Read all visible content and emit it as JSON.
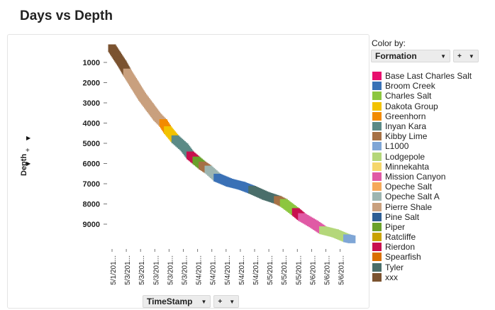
{
  "page": {
    "title": "Days vs Depth"
  },
  "y_axis_control": {
    "label": "Depth",
    "plus": "+"
  },
  "x_axis_control": {
    "label": "TimeStamp",
    "plus": "+"
  },
  "legend": {
    "title": "Color by:",
    "field": "Formation",
    "plus": "+",
    "items": [
      {
        "label": "Base Last Charles Salt",
        "color": "#e8106e"
      },
      {
        "label": "Broom Creek",
        "color": "#3a71b6"
      },
      {
        "label": "Charles Salt",
        "color": "#8cc63f"
      },
      {
        "label": "Dakota Group",
        "color": "#f2c200"
      },
      {
        "label": "Greenhorn",
        "color": "#f28a00"
      },
      {
        "label": "Inyan Kara",
        "color": "#5b8a86"
      },
      {
        "label": "Kibby Lime",
        "color": "#a67145"
      },
      {
        "label": "L1000",
        "color": "#7fa6d6"
      },
      {
        "label": "Lodgepole",
        "color": "#b4d77a"
      },
      {
        "label": "Minnekahta",
        "color": "#f5d66b"
      },
      {
        "label": "Mission Canyon",
        "color": "#e05aa5"
      },
      {
        "label": "Opeche Salt",
        "color": "#f5a95a"
      },
      {
        "label": "Opeche Salt A",
        "color": "#9db5b1"
      },
      {
        "label": "Pierre Shale",
        "color": "#c9a07e"
      },
      {
        "label": "Pine Salt",
        "color": "#2e5e94"
      },
      {
        "label": "Piper",
        "color": "#6aa12a"
      },
      {
        "label": "Ratcliffe",
        "color": "#c9a200"
      },
      {
        "label": "Rierdon",
        "color": "#c8104e"
      },
      {
        "label": "Spearfish",
        "color": "#d96f00"
      },
      {
        "label": "Tyler",
        "color": "#4a6e6a"
      },
      {
        "label": "xxx",
        "color": "#7b5330"
      }
    ]
  },
  "chart_data": {
    "type": "scatter",
    "title": "Days vs Depth",
    "xlabel": "TimeStamp",
    "ylabel": "Depth",
    "y_inverted": true,
    "ylim": [
      0,
      10000
    ],
    "y_ticks": [
      1000,
      2000,
      3000,
      4000,
      5000,
      6000,
      7000,
      8000,
      9000
    ],
    "x_ticks": [
      "5/1/201...",
      "5/3/201...",
      "5/3/201...",
      "5/3/201...",
      "5/3/201...",
      "5/3/201...",
      "5/4/201...",
      "5/4/201...",
      "5/4/201...",
      "5/4/201...",
      "5/4/201...",
      "5/5/201...",
      "5/5/201...",
      "5/5/201...",
      "5/6/201...",
      "5/6/201...",
      "5/6/201..."
    ],
    "grid": false,
    "legend_position": "right",
    "color_by": "Formation",
    "series": [
      {
        "name": "xxx",
        "x": [
          0.0,
          0.35,
          0.7,
          1.0
        ],
        "y": [
          300,
          700,
          1100,
          1500
        ]
      },
      {
        "name": "Pierre Shale",
        "x": [
          1.0,
          1.5,
          2.0,
          2.5,
          3.0,
          3.4
        ],
        "y": [
          1500,
          2100,
          2700,
          3200,
          3700,
          4000
        ]
      },
      {
        "name": "Greenhorn",
        "x": [
          3.4,
          3.7
        ],
        "y": [
          4000,
          4350
        ]
      },
      {
        "name": "Dakota Group",
        "x": [
          3.7,
          4.2
        ],
        "y": [
          4350,
          4800
        ]
      },
      {
        "name": "Inyan Kara",
        "x": [
          4.2,
          4.8,
          5.2
        ],
        "y": [
          4800,
          5200,
          5600
        ]
      },
      {
        "name": "Rierdon",
        "x": [
          5.2,
          5.6
        ],
        "y": [
          5600,
          5850
        ]
      },
      {
        "name": "Piper",
        "x": [
          5.6,
          6.0
        ],
        "y": [
          5850,
          6100
        ]
      },
      {
        "name": "Kibby Lime",
        "x": [
          6.0,
          6.4
        ],
        "y": [
          6100,
          6300
        ]
      },
      {
        "name": "Opeche Salt A",
        "x": [
          6.4,
          7.0
        ],
        "y": [
          6300,
          6700
        ]
      },
      {
        "name": "Broom Creek",
        "x": [
          7.0,
          7.8,
          8.6,
          9.3
        ],
        "y": [
          6700,
          6950,
          7100,
          7300
        ]
      },
      {
        "name": "Tyler",
        "x": [
          9.3,
          10.2,
          11.0
        ],
        "y": [
          7300,
          7600,
          7800
        ]
      },
      {
        "name": "Kibby Lime",
        "x": [
          11.0,
          11.4
        ],
        "y": [
          7800,
          7950
        ]
      },
      {
        "name": "Charles Salt",
        "x": [
          11.4,
          12.2
        ],
        "y": [
          7950,
          8400
        ]
      },
      {
        "name": "Rierdon",
        "x": [
          12.2,
          12.6
        ],
        "y": [
          8400,
          8650
        ]
      },
      {
        "name": "Mission Canyon",
        "x": [
          12.6,
          13.4,
          14.0
        ],
        "y": [
          8650,
          9000,
          9300
        ]
      },
      {
        "name": "Lodgepole",
        "x": [
          14.0,
          14.8,
          15.6
        ],
        "y": [
          9300,
          9450,
          9700
        ]
      },
      {
        "name": "L1000",
        "x": [
          15.6,
          15.9
        ],
        "y": [
          9700,
          9750
        ]
      }
    ]
  }
}
